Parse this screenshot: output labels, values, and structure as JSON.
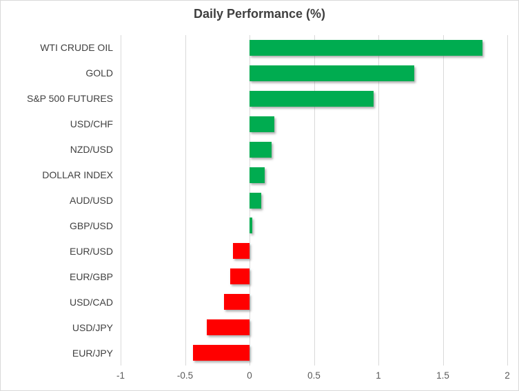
{
  "chart_data": {
    "type": "bar",
    "orientation": "horizontal",
    "title": "Daily Performance (%)",
    "categories": [
      "WTI CRUDE OIL",
      "GOLD",
      "S&P 500 FUTURES",
      "USD/CHF",
      "NZD/USD",
      "DOLLAR INDEX",
      "AUD/USD",
      "GBP/USD",
      "EUR/USD",
      "EUR/GBP",
      "USD/CAD",
      "USD/JPY",
      "EUR/JPY"
    ],
    "values": [
      1.81,
      1.28,
      0.96,
      0.19,
      0.17,
      0.12,
      0.09,
      0.02,
      -0.13,
      -0.15,
      -0.2,
      -0.33,
      -0.44
    ],
    "xlabel": "",
    "ylabel": "",
    "xlim": [
      -1,
      2
    ],
    "x_ticks": [
      -1,
      -0.5,
      0,
      0.5,
      1,
      1.5,
      2
    ],
    "x_tick_labels": [
      "-1",
      "-0.5",
      "0",
      "0.5",
      "1",
      "1.5",
      "2"
    ],
    "grid": "vertical",
    "legend": "none",
    "colors": {
      "positive": "#00AC50",
      "negative": "#FF0000",
      "gridline": "#D9D9D9",
      "title_text": "#3F3F3F",
      "category_text": "#404040",
      "tick_text": "#595959"
    }
  }
}
